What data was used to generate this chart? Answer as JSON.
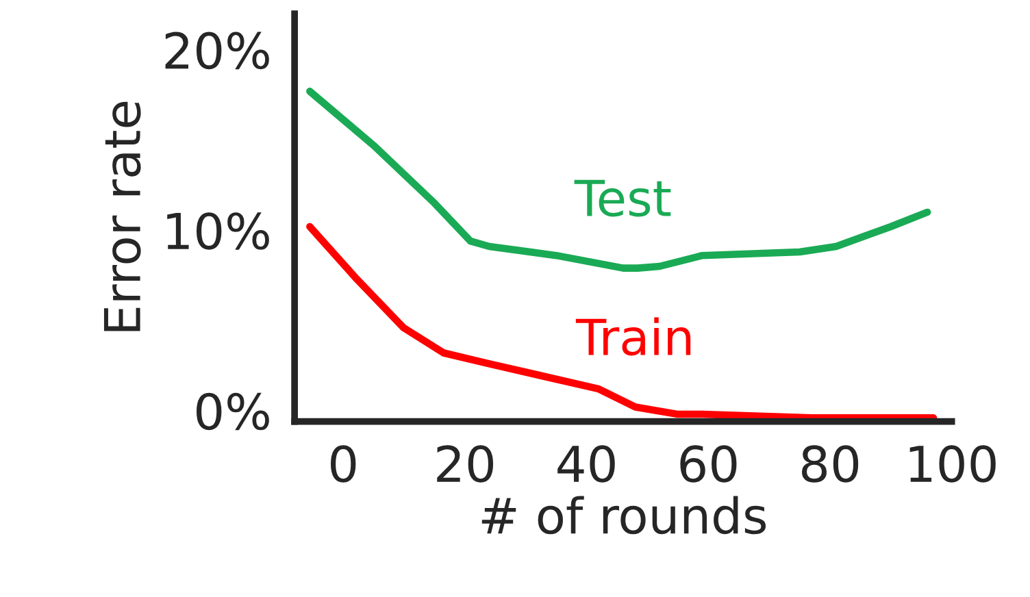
{
  "chart_data": {
    "type": "line",
    "xlabel": "# of rounds",
    "ylabel": "Error rate",
    "xlim": [
      -8,
      100
    ],
    "ylim": [
      -0.6,
      22
    ],
    "xticks": [
      0,
      20,
      40,
      60,
      80,
      100
    ],
    "yticks": [
      {
        "value": 0,
        "label": "0%"
      },
      {
        "value": 10,
        "label": "10%"
      },
      {
        "value": 20,
        "label": "20%"
      }
    ],
    "grid": false,
    "legend": false,
    "marker": "none",
    "line_style": "solid",
    "series": [
      {
        "name": "Test",
        "color": "#1aaa55",
        "x": [
          -5.5,
          5,
          15,
          20.9,
          24,
          35,
          46,
          48.4,
          52,
          59,
          75,
          81,
          90,
          96
        ],
        "values": [
          17.7,
          14.7,
          11.5,
          9.4,
          9.1,
          8.6,
          7.9,
          7.9,
          8.0,
          8.6,
          8.8,
          9.1,
          10.2,
          11
        ]
      },
      {
        "name": "Train",
        "color": "#ff0000",
        "x": [
          -5.5,
          2.2,
          9.9,
          16.5,
          24,
          33,
          42,
          48,
          55,
          59,
          77,
          97
        ],
        "values": [
          10.2,
          7.3,
          4.6,
          3.2,
          2.6,
          1.9,
          1.2,
          0.2,
          -0.2,
          -0.2,
          -0.4,
          -0.4
        ]
      }
    ]
  }
}
